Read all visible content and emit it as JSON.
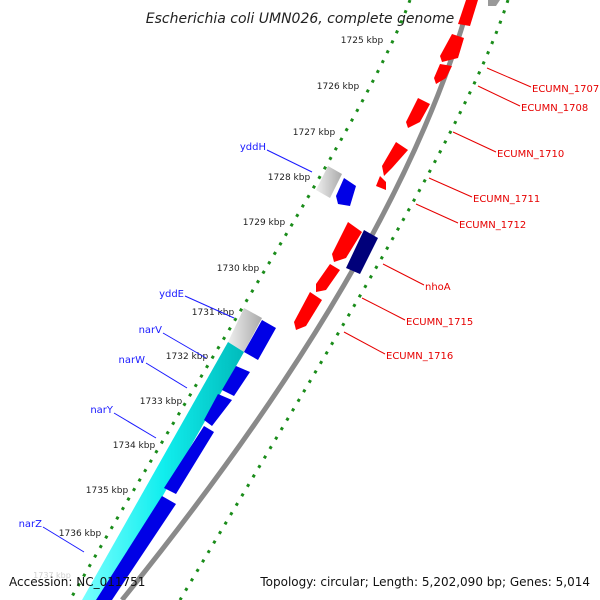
{
  "title": "Escherichia coli UMN026, complete genome",
  "footer": {
    "accession": "Accession: NC_011751",
    "summary": "Topology: circular; Length: 5,202,090 bp; Genes: 5,014"
  },
  "ticks": [
    "1725 kbp",
    "1726 kbp",
    "1727 kbp",
    "1728 kbp",
    "1729 kbp",
    "1730 kbp",
    "1731 kbp",
    "1732 kbp",
    "1733 kbp",
    "1734 kbp",
    "1735 kbp",
    "1736 kbp"
  ],
  "faint_tick": "1737 kbp",
  "genes_right": [
    "ECUMN_1707",
    "ECUMN_1708",
    "ECUMN_1710",
    "ECUMN_1711",
    "ECUMN_1712",
    "nhoA",
    "ECUMN_1715",
    "ECUMN_1716"
  ],
  "genes_left": [
    "yddH",
    "yddE",
    "narV",
    "narW",
    "narY",
    "narZ"
  ],
  "colors": {
    "forward_feature": "#ff0000",
    "reverse_feature": "#0000e6",
    "dark_feature": "#00007a",
    "pseudo_feature": "#c0c0c0",
    "operon_span": "#00e6e6",
    "backbone": "#808080",
    "tick_dots": "#1a8c1a",
    "label_red": "#e60000",
    "label_blue": "#1a1aff"
  }
}
